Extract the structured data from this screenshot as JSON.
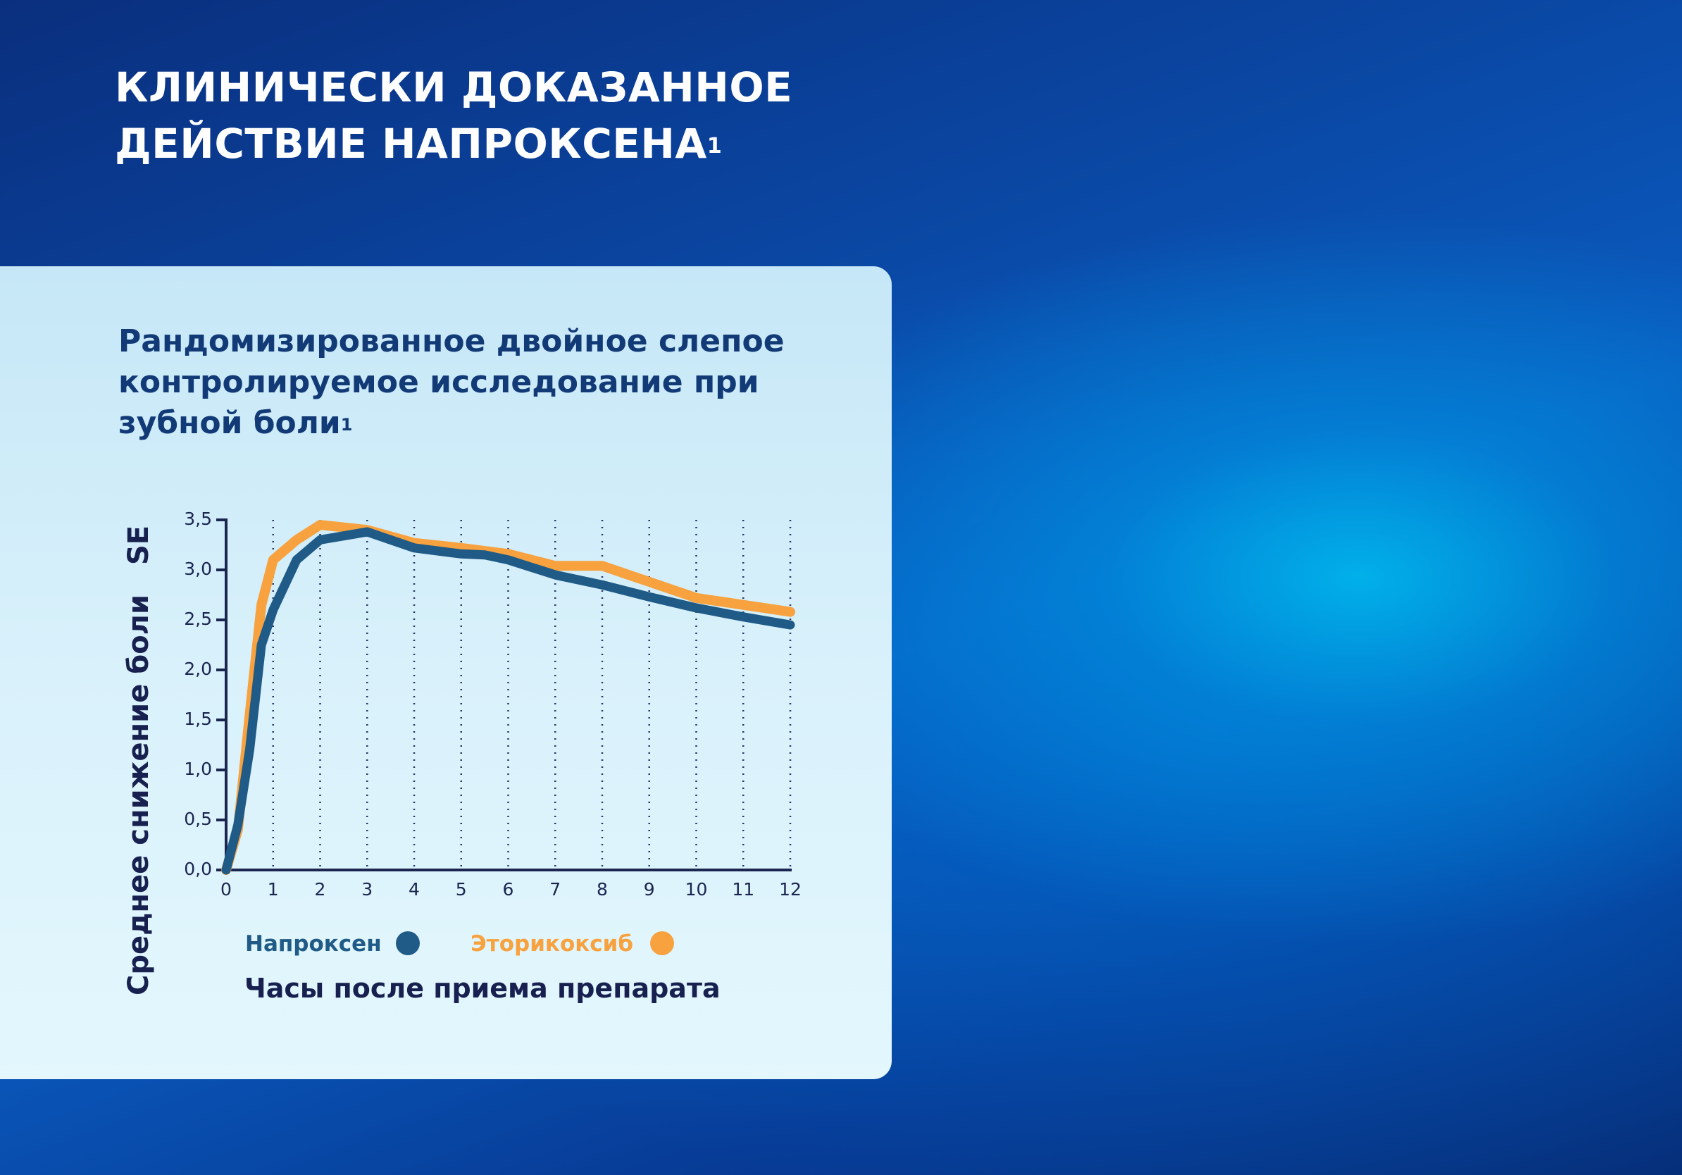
{
  "header": {
    "title_line1": "КЛИНИЧЕСКИ ДОКАЗАННОЕ",
    "title_line2": "ДЕЙСТВИЕ НАПРОКСЕНА",
    "title_sup": "1"
  },
  "card": {
    "title_line1": "Рандомизированное двойное слепое",
    "title_line2": "контролируемое исследование при",
    "title_line3": "зубной боли",
    "title_sup": "1"
  },
  "colors": {
    "naproxen": "#1f5b86",
    "etoricoxib": "#f7a23f",
    "title_white": "#ffffff",
    "card_text": "#123a76"
  },
  "chart_data": {
    "type": "line",
    "xlabel": "Часы после приема препарата",
    "ylabel": "Среднее снижение боли",
    "ylabel_suffix": "SE",
    "xlim": [
      0,
      12
    ],
    "ylim": [
      0,
      3.5
    ],
    "x_ticks": [
      "0",
      "1",
      "2",
      "3",
      "4",
      "5",
      "6",
      "7",
      "8",
      "9",
      "10",
      "11",
      "12"
    ],
    "y_ticks": [
      "0,0",
      "0,5",
      "1,0",
      "1,5",
      "2,0",
      "2,5",
      "3,0",
      "3,5"
    ],
    "grid": "vertical dotted at each hour",
    "legend_position": "below plot",
    "series": [
      {
        "name": "Напроксен",
        "color": "#1f5b86",
        "x": [
          0,
          0.25,
          0.5,
          0.75,
          1,
          1.5,
          2,
          3,
          4,
          5,
          5.5,
          6,
          7,
          8,
          9,
          10,
          11,
          12
        ],
        "y": [
          0.0,
          0.45,
          1.2,
          2.25,
          2.6,
          3.1,
          3.3,
          3.38,
          3.22,
          3.16,
          3.15,
          3.1,
          2.95,
          2.85,
          2.73,
          2.62,
          2.53,
          2.45
        ]
      },
      {
        "name": "Эторикоксиб",
        "color": "#f7a23f",
        "x": [
          0,
          0.25,
          0.5,
          0.75,
          1,
          1.5,
          2,
          3,
          4,
          5,
          6,
          7,
          8,
          9,
          10,
          11,
          12
        ],
        "y": [
          0.0,
          0.4,
          1.55,
          2.65,
          3.1,
          3.3,
          3.45,
          3.4,
          3.27,
          3.22,
          3.16,
          3.04,
          3.04,
          2.88,
          2.72,
          2.65,
          2.58
        ]
      }
    ]
  }
}
